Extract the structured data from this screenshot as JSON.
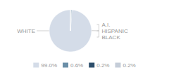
{
  "chart_data": {
    "type": "pie",
    "categories": [
      "99.0%",
      "0.6%",
      "0.2%",
      "0.2%"
    ],
    "values": [
      99.0,
      0.6,
      0.2,
      0.2
    ],
    "colors": [
      "#d4dce8",
      "#6b8fa8",
      "#2d4e6b",
      "#c5cdd8"
    ],
    "annotations": [
      "WHITE",
      "A.I.",
      "HISPANIC",
      "BLACK"
    ],
    "legend": "bottom"
  }
}
